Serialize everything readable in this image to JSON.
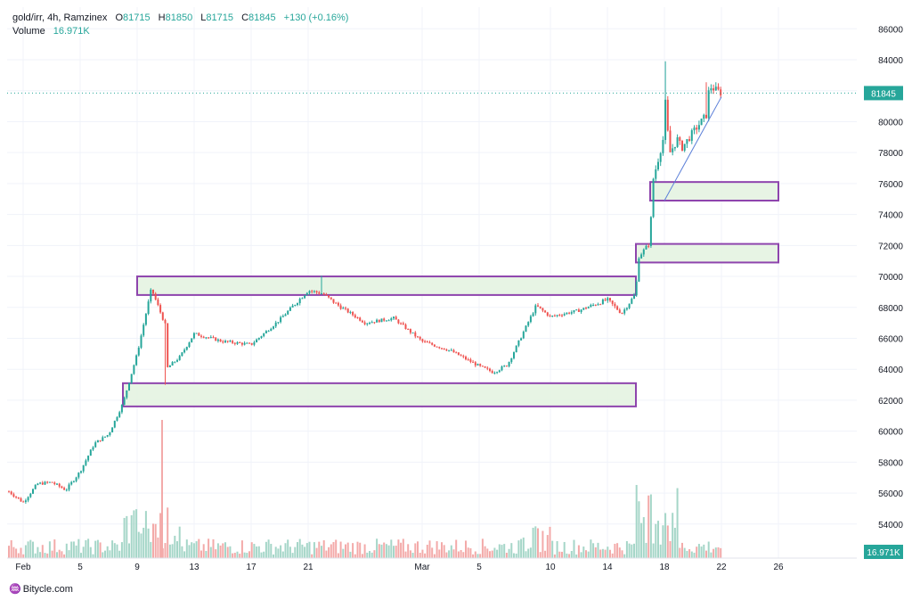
{
  "legend": {
    "symbol": "gold/irr, 4h, Ramzinex",
    "open_label": "O",
    "open": "81715",
    "high_label": "H",
    "high": "81850",
    "low_label": "L",
    "low": "81715",
    "close_label": "C",
    "close": "81845",
    "change": "+130 (+0.16%)",
    "volume_label": "Volume",
    "volume": "16.971K"
  },
  "brand": "Bitycle.com",
  "colors": {
    "up": "#26a69a",
    "down": "#ef5350",
    "vol_up": "#a5d6c8",
    "vol_down": "#f3aaa9",
    "zone_fill": "#e3f2df",
    "zone_border": "#8e44ad",
    "trendline": "#5b7fd8",
    "grid": "#f0f3fa",
    "axis_text": "#131722"
  },
  "chart_data": {
    "type": "candlestick",
    "interval": "4h",
    "y_ticks": [
      54000,
      56000,
      58000,
      60000,
      62000,
      64000,
      66000,
      68000,
      70000,
      72000,
      74000,
      76000,
      78000,
      80000,
      82000,
      84000,
      86000
    ],
    "ylim": [
      51800,
      87400
    ],
    "x_ticks": [
      "Feb",
      "5",
      "9",
      "13",
      "17",
      "21",
      "Mar",
      "5",
      "10",
      "14",
      "18",
      "22",
      "26"
    ],
    "last_price_label": "81845",
    "volume_label": "16.971K",
    "path_points": [
      [
        "Jan 31",
        56100
      ],
      [
        "Feb 1",
        55400
      ],
      [
        "Feb 2",
        56600
      ],
      [
        "Feb 3",
        56700
      ],
      [
        "Feb 4",
        56200
      ],
      [
        "Feb 5",
        57400
      ],
      [
        "Feb 6",
        59200
      ],
      [
        "Feb 7",
        59800
      ],
      [
        "Feb 8",
        61800
      ],
      [
        "Feb 9",
        65000
      ],
      [
        "Feb 10",
        69200
      ],
      [
        "Feb 11",
        66800
      ],
      [
        "Feb 11",
        64100
      ],
      [
        "Feb 12",
        64800
      ],
      [
        "Feb 13",
        66300
      ],
      [
        "Feb 15",
        65800
      ],
      [
        "Feb 17",
        65600
      ],
      [
        "Feb 19",
        67200
      ],
      [
        "Feb 21",
        69100
      ],
      [
        "Feb 22",
        68900
      ],
      [
        "Feb 23",
        68200
      ],
      [
        "Feb 25",
        67000
      ],
      [
        "Feb 27",
        67300
      ],
      [
        "Mar 1",
        65800
      ],
      [
        "Mar 3",
        65200
      ],
      [
        "Mar 5",
        64200
      ],
      [
        "Mar 6",
        63800
      ],
      [
        "Mar 7",
        64300
      ],
      [
        "Mar 8",
        66200
      ],
      [
        "Mar 9",
        68100
      ],
      [
        "Mar 10",
        67400
      ],
      [
        "Mar 12",
        67800
      ],
      [
        "Mar 14",
        68500
      ],
      [
        "Mar 15",
        67600
      ],
      [
        "Mar 16",
        68900
      ],
      [
        "Mar 16",
        71200
      ],
      [
        "Mar 17",
        72200
      ],
      [
        "Mar 17",
        76000
      ],
      [
        "Mar 18",
        79200
      ],
      [
        "Mar 18",
        83200
      ],
      [
        "Mar 18",
        77800
      ],
      [
        "Mar 19",
        79000
      ],
      [
        "Mar 19",
        78200
      ],
      [
        "Mar 20",
        79300
      ],
      [
        "Mar 21",
        80500
      ],
      [
        "Mar 21",
        82300
      ],
      [
        "Mar 22",
        81845
      ]
    ],
    "zones": [
      {
        "from": "Feb 8",
        "to": "Mar 16",
        "low": 61600,
        "high": 63100
      },
      {
        "from": "Feb 9",
        "to": "Mar 16",
        "low": 68800,
        "high": 70000
      },
      {
        "from": "Mar 16",
        "to": "Mar 26",
        "low": 70900,
        "high": 72100
      },
      {
        "from": "Mar 17",
        "to": "Mar 26",
        "low": 74900,
        "high": 76100
      }
    ],
    "trendline": {
      "from": [
        "Mar 18",
        74900
      ],
      "to": [
        "Mar 22",
        81600
      ]
    }
  }
}
